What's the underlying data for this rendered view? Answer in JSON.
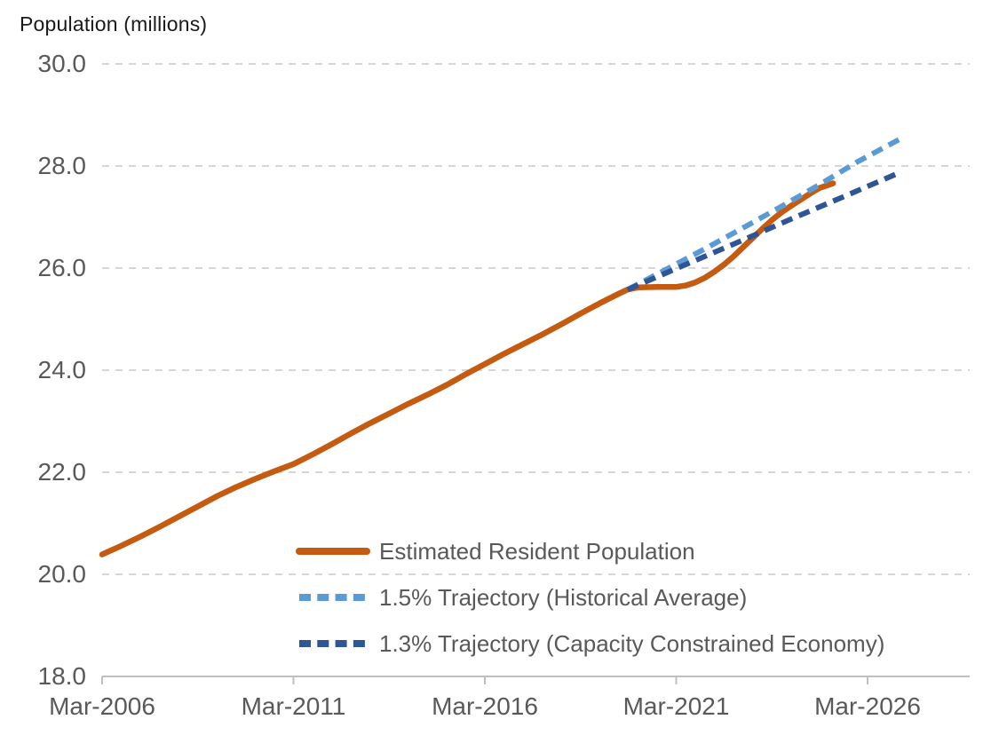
{
  "header": {
    "text": "Population (millions)"
  },
  "colors": {
    "erp": "#C55A11",
    "trajectory_15": "#5B9BD5",
    "trajectory_13": "#2E5596",
    "gridline": "#D6D6D6",
    "axis": "#BFBFBF",
    "tick_label": "#595959",
    "title_text": "#1a1a1a",
    "background": "#ffffff"
  },
  "chart_data": {
    "type": "line",
    "title": "Population (millions)",
    "ylabel": "Population (millions)",
    "xlabel": "",
    "x_unit": "years since Mar-2006 (quarterly dates, t=0 is Mar-2006)",
    "ylim": [
      18.0,
      30.0
    ],
    "xlim": [
      0,
      22.7
    ],
    "grid": "horizontal-dashed",
    "legend_position": "inside-bottom-left",
    "y_ticks": [
      30.0,
      28.0,
      26.0,
      24.0,
      22.0,
      20.0,
      18.0
    ],
    "x_ticks": [
      {
        "t": 0,
        "label": "Mar-2006"
      },
      {
        "t": 5,
        "label": "Mar-2011"
      },
      {
        "t": 10,
        "label": "Mar-2016"
      },
      {
        "t": 15,
        "label": "Mar-2021"
      },
      {
        "t": 20,
        "label": "Mar-2026"
      }
    ],
    "series": [
      {
        "id": "erp",
        "name": "Estimated Resident Population",
        "style": "solid",
        "color": "#C55A11",
        "points": [
          [
            0,
            20.39
          ],
          [
            0.5,
            20.56
          ],
          [
            1,
            20.74
          ],
          [
            1.5,
            20.93
          ],
          [
            2,
            21.13
          ],
          [
            2.5,
            21.33
          ],
          [
            3,
            21.53
          ],
          [
            3.5,
            21.71
          ],
          [
            4,
            21.87
          ],
          [
            4.5,
            22.02
          ],
          [
            5,
            22.16
          ],
          [
            5.5,
            22.35
          ],
          [
            6,
            22.55
          ],
          [
            6.5,
            22.76
          ],
          [
            7,
            22.96
          ],
          [
            7.5,
            23.15
          ],
          [
            8,
            23.34
          ],
          [
            8.5,
            23.52
          ],
          [
            9,
            23.71
          ],
          [
            9.5,
            23.92
          ],
          [
            10,
            24.12
          ],
          [
            10.5,
            24.32
          ],
          [
            11,
            24.51
          ],
          [
            11.5,
            24.7
          ],
          [
            12,
            24.9
          ],
          [
            12.5,
            25.11
          ],
          [
            13,
            25.31
          ],
          [
            13.5,
            25.5
          ],
          [
            13.73,
            25.58
          ],
          [
            14,
            25.62
          ],
          [
            14.5,
            25.63
          ],
          [
            15,
            25.63
          ],
          [
            15.25,
            25.66
          ],
          [
            15.5,
            25.72
          ],
          [
            15.75,
            25.81
          ],
          [
            16,
            25.93
          ],
          [
            16.25,
            26.07
          ],
          [
            16.5,
            26.23
          ],
          [
            16.75,
            26.41
          ],
          [
            17,
            26.59
          ],
          [
            17.25,
            26.77
          ],
          [
            17.5,
            26.94
          ],
          [
            17.75,
            27.09
          ],
          [
            18,
            27.22
          ],
          [
            18.25,
            27.34
          ],
          [
            18.5,
            27.46
          ],
          [
            18.75,
            27.57
          ],
          [
            19.1,
            27.66
          ]
        ]
      },
      {
        "id": "trajectory_15",
        "name": "1.5% Trajectory (Historical Average)",
        "style": "dashed",
        "color": "#5B9BD5",
        "points": [
          [
            13.73,
            25.58
          ],
          [
            14.73,
            25.97
          ],
          [
            15.73,
            26.37
          ],
          [
            16.73,
            26.78
          ],
          [
            17.73,
            27.2
          ],
          [
            18.73,
            27.63
          ],
          [
            19.73,
            28.08
          ],
          [
            20.9,
            28.55
          ]
        ]
      },
      {
        "id": "trajectory_13",
        "name": "1.3% Trajectory (Capacity Constrained Economy)",
        "style": "dashed",
        "color": "#2E5596",
        "points": [
          [
            13.73,
            25.58
          ],
          [
            15,
            25.99
          ],
          [
            16.5,
            26.47
          ],
          [
            18,
            26.96
          ],
          [
            19.5,
            27.44
          ],
          [
            20.8,
            27.86
          ]
        ]
      }
    ]
  }
}
